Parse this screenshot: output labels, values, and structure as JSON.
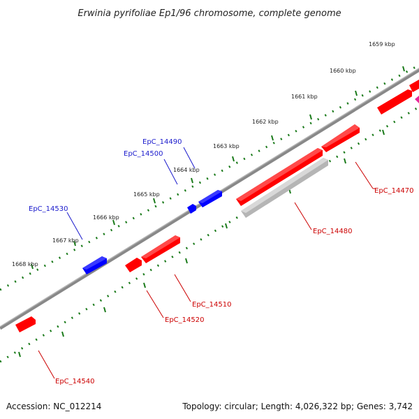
{
  "title": "Erwinia pyrifoliae Ep1/96 chromosome, complete genome",
  "footer": {
    "accession": "Accession: NC_012214",
    "summary": "Topology: circular; Length: 4,026,322 bp; Genes: 3,742"
  },
  "colors": {
    "forward": "#ff0000",
    "reverse": "#0000ff",
    "other": "#bbbbbb",
    "magenta": "#e8259a",
    "backbone": "#777777",
    "ticks": "#1a7a1a",
    "reverse_label": "#1a1acc",
    "forward_label": "#cc0000"
  },
  "ticks": [
    {
      "label": "1659 kbp"
    },
    {
      "label": "1660 kbp"
    },
    {
      "label": "1661 kbp"
    },
    {
      "label": "1662 kbp"
    },
    {
      "label": "1663 kbp"
    },
    {
      "label": "1664 kbp"
    },
    {
      "label": "1665 kbp"
    },
    {
      "label": "1666 kbp"
    },
    {
      "label": "1667 kbp"
    },
    {
      "label": "1668 kbp"
    }
  ],
  "gene_labels": [
    {
      "text": "EpC_14490",
      "strand": "reverse"
    },
    {
      "text": "EpC_14500",
      "strand": "reverse"
    },
    {
      "text": "EpC_14530",
      "strand": "reverse"
    },
    {
      "text": "EpC_14470",
      "strand": "forward"
    },
    {
      "text": "EpC_14480",
      "strand": "forward"
    },
    {
      "text": "EpC_14510",
      "strand": "forward"
    },
    {
      "text": "EpC_14520",
      "strand": "forward"
    },
    {
      "text": "EpC_14540",
      "strand": "forward"
    }
  ]
}
